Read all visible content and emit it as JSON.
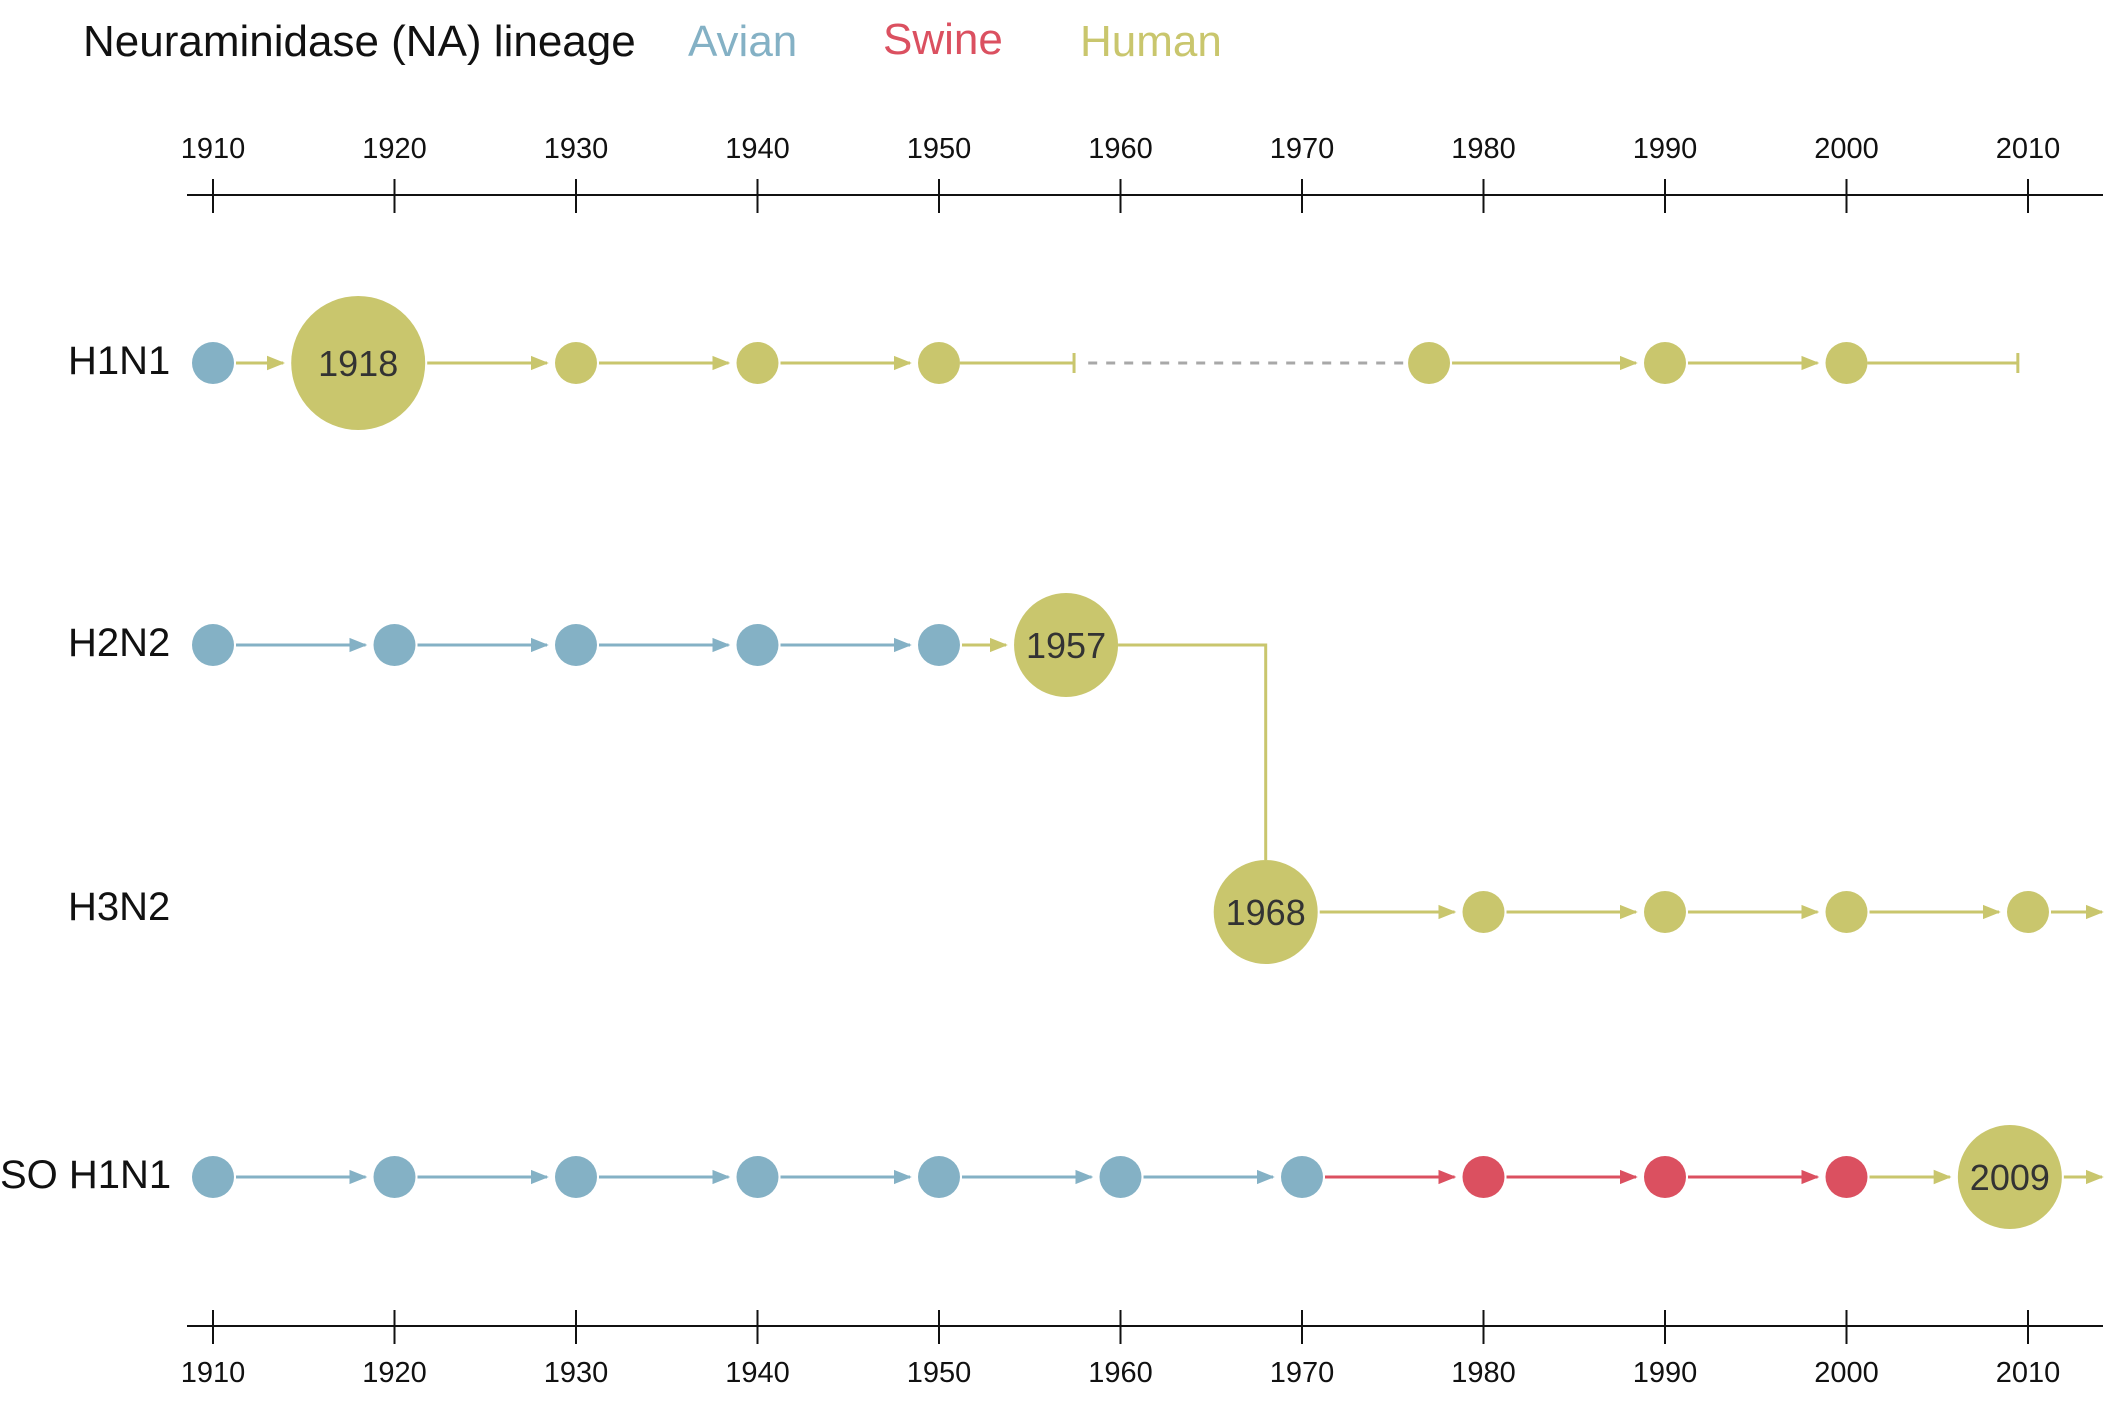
{
  "title": "Neuraminidase (NA) lineage",
  "legend": [
    {
      "key": "avian",
      "label": "Avian",
      "color": "#84b1c5"
    },
    {
      "key": "swine",
      "label": "Swine",
      "color": "#db5060"
    },
    {
      "key": "human",
      "label": "Human",
      "color": "#c9c66d"
    }
  ],
  "colors": {
    "axis": "#111111",
    "gap_dashes": "#a8a8a8"
  },
  "axis": {
    "year_range": [
      1910,
      2015
    ],
    "ticks": [
      1910,
      1920,
      1930,
      1940,
      1950,
      1960,
      1970,
      1980,
      1990,
      2000,
      2010
    ]
  },
  "rows": [
    {
      "key": "h1n1",
      "label": "H1N1",
      "nodes": [
        {
          "year": 1910,
          "lineage": "avian"
        },
        {
          "year": 1918,
          "lineage": "human",
          "pandemic": true,
          "label": "1918"
        },
        {
          "year": 1930,
          "lineage": "human"
        },
        {
          "year": 1940,
          "lineage": "human"
        },
        {
          "year": 1950,
          "lineage": "human"
        }
      ],
      "end_year": 1957,
      "gap": {
        "from": 1958,
        "to": 1976
      },
      "continuation": {
        "nodes": [
          {
            "year": 1977,
            "lineage": "human"
          },
          {
            "year": 1990,
            "lineage": "human"
          },
          {
            "year": 2000,
            "lineage": "human"
          }
        ],
        "end_year": 2009
      }
    },
    {
      "key": "h2n2",
      "label": "H2N2",
      "nodes": [
        {
          "year": 1910,
          "lineage": "avian"
        },
        {
          "year": 1920,
          "lineage": "avian"
        },
        {
          "year": 1930,
          "lineage": "avian"
        },
        {
          "year": 1940,
          "lineage": "avian"
        },
        {
          "year": 1950,
          "lineage": "avian"
        },
        {
          "year": 1957,
          "lineage": "human",
          "pandemic": true,
          "label": "1957"
        }
      ],
      "transfer_to": "h3n2"
    },
    {
      "key": "h3n2",
      "label": "H3N2",
      "nodes": [
        {
          "year": 1968,
          "lineage": "human",
          "pandemic": true,
          "label": "1968"
        },
        {
          "year": 1980,
          "lineage": "human"
        },
        {
          "year": 1990,
          "lineage": "human"
        },
        {
          "year": 2000,
          "lineage": "human"
        },
        {
          "year": 2010,
          "lineage": "human"
        }
      ],
      "arrow_out": true
    },
    {
      "key": "so-h1n1",
      "label": "SO H1N1",
      "nodes": [
        {
          "year": 1910,
          "lineage": "avian"
        },
        {
          "year": 1920,
          "lineage": "avian"
        },
        {
          "year": 1930,
          "lineage": "avian"
        },
        {
          "year": 1940,
          "lineage": "avian"
        },
        {
          "year": 1950,
          "lineage": "avian"
        },
        {
          "year": 1960,
          "lineage": "avian"
        },
        {
          "year": 1970,
          "lineage": "avian"
        },
        {
          "year": 1980,
          "lineage": "swine"
        },
        {
          "year": 1990,
          "lineage": "swine"
        },
        {
          "year": 2000,
          "lineage": "swine"
        },
        {
          "year": 2009,
          "lineage": "human",
          "pandemic": true,
          "label": "2009"
        }
      ],
      "arrow_out": true
    }
  ]
}
